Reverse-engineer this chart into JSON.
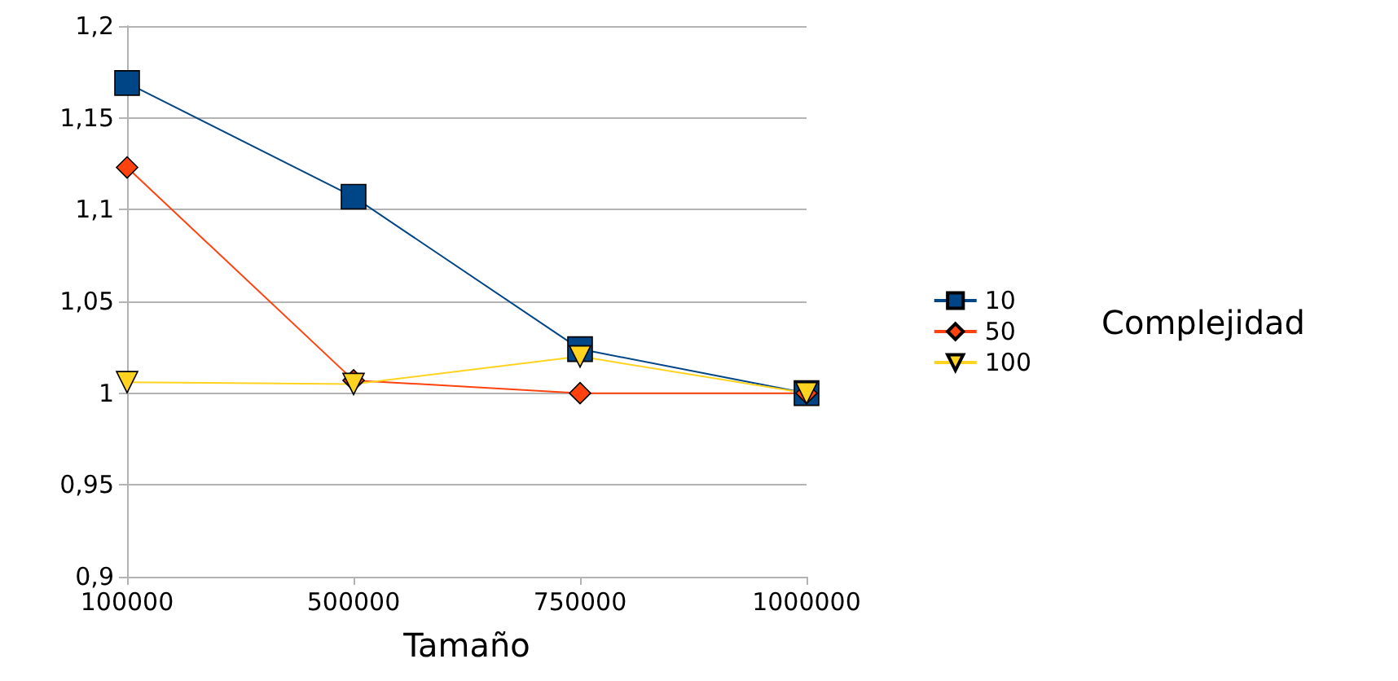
{
  "chart_data": {
    "type": "line",
    "xlabel": "Tamaño",
    "legend_title": "Complejidad",
    "categories": [
      "100000",
      "500000",
      "750000",
      "1000000"
    ],
    "series": [
      {
        "name": "10",
        "color": "#004586",
        "marker": "square",
        "values": [
          1.169,
          1.107,
          1.024,
          1.0
        ]
      },
      {
        "name": "50",
        "color": "#ff420e",
        "marker": "diamond",
        "values": [
          1.123,
          1.007,
          1.0,
          1.0
        ]
      },
      {
        "name": "100",
        "color": "#ffd320",
        "marker": "triangle",
        "values": [
          1.006,
          1.005,
          1.02,
          1.0
        ]
      }
    ],
    "ylim": [
      0.9,
      1.2
    ],
    "yticks": [
      {
        "value": 0.9,
        "label": "0,9"
      },
      {
        "value": 0.95,
        "label": "0,95"
      },
      1,
      {
        "value": 1.05,
        "label": "1,05"
      },
      {
        "value": 1.1,
        "label": "1,1"
      },
      {
        "value": 1.15,
        "label": "1,15"
      },
      {
        "value": 1.2,
        "label": "1,2"
      }
    ],
    "grid": "y",
    "legend": "right",
    "line_style": "solid"
  }
}
